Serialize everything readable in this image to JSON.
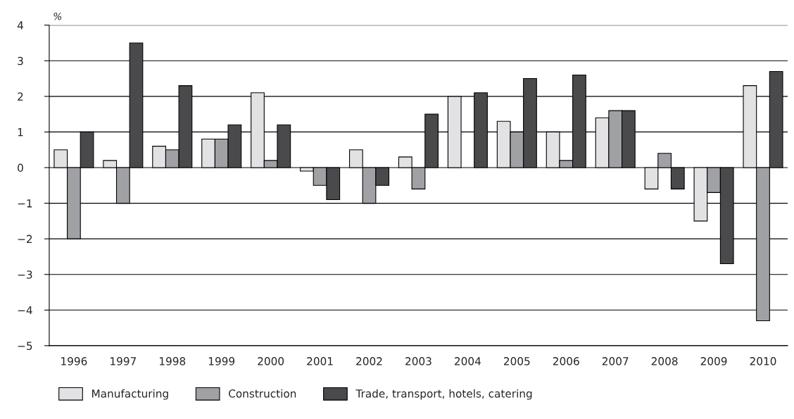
{
  "chart_data": {
    "type": "bar",
    "ylabel": "%",
    "categories": [
      "1996",
      "1997",
      "1998",
      "1999",
      "2000",
      "2001",
      "2002",
      "2003",
      "2004",
      "2005",
      "2006",
      "2007",
      "2008",
      "2009",
      "2010"
    ],
    "series": [
      {
        "name": "Manufacturing",
        "color": "#e2e2e4",
        "values": [
          0.5,
          0.2,
          0.6,
          0.8,
          2.1,
          -0.1,
          0.5,
          0.3,
          2.0,
          1.3,
          1.0,
          1.4,
          -0.6,
          -1.5,
          2.3
        ]
      },
      {
        "name": "Construction",
        "color": "#a0a1a5",
        "values": [
          -2.0,
          -1.0,
          0.5,
          0.8,
          0.2,
          -0.5,
          -1.0,
          -0.6,
          null,
          1.0,
          0.2,
          1.6,
          0.4,
          -0.7,
          -4.3
        ]
      },
      {
        "name": "Trade, transport, hotels, catering",
        "color": "#4a4a4d",
        "values": [
          1.0,
          3.5,
          2.3,
          1.2,
          1.2,
          -0.9,
          -0.5,
          1.5,
          2.1,
          2.5,
          2.6,
          1.6,
          -0.6,
          -2.7,
          2.7
        ]
      }
    ],
    "ylim": [
      -5,
      4
    ],
    "yticks": [
      {
        "value": -5,
        "label": "−5"
      },
      {
        "value": -4,
        "label": "−4"
      },
      {
        "value": -3,
        "label": "−3"
      },
      {
        "value": -2,
        "label": "−2"
      },
      {
        "value": -1,
        "label": "−1"
      },
      0,
      1,
      2,
      3,
      4
    ],
    "grid": "y",
    "legend": "bottom"
  }
}
